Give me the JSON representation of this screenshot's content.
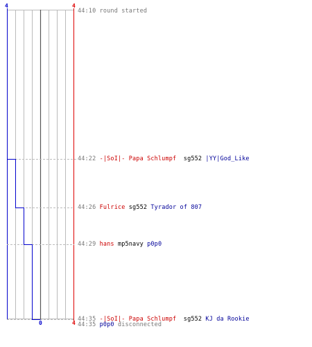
{
  "scale": {
    "left_top": "4",
    "right_top": "4",
    "bottom_center": "0",
    "bottom_right": "4"
  },
  "colors": {
    "team_blue": "#0000cc",
    "team_red": "#dd0000",
    "grid": "#bbbbbb",
    "center_line": "#555555",
    "dashed_guide": "#bbbbbb",
    "timestamp": "#777777",
    "killer": "#cc0000",
    "victim": "#000099"
  },
  "events": [
    {
      "time": "44:10",
      "type": "system",
      "text": "round started"
    },
    {
      "time": "44:22",
      "type": "kill",
      "killer": "-|SoI|- Papa Schlumpf",
      "weapon": "sg552",
      "victim": "|YY|God_Like"
    },
    {
      "time": "44:26",
      "type": "kill",
      "killer": "Fulrice",
      "weapon": "sg552",
      "victim": "Tyrador of 807"
    },
    {
      "time": "44:29",
      "type": "kill",
      "killer": "hans",
      "weapon": "mp5navy",
      "victim": "p0p0"
    },
    {
      "time": "44:35",
      "type": "kill",
      "killer": "-|SoI|- Papa Schlumpf",
      "weapon": "sg552",
      "victim": "KJ da Rookie"
    },
    {
      "time": "44:35",
      "type": "system_player",
      "player": "p0p0",
      "text": "disconnected"
    }
  ]
}
